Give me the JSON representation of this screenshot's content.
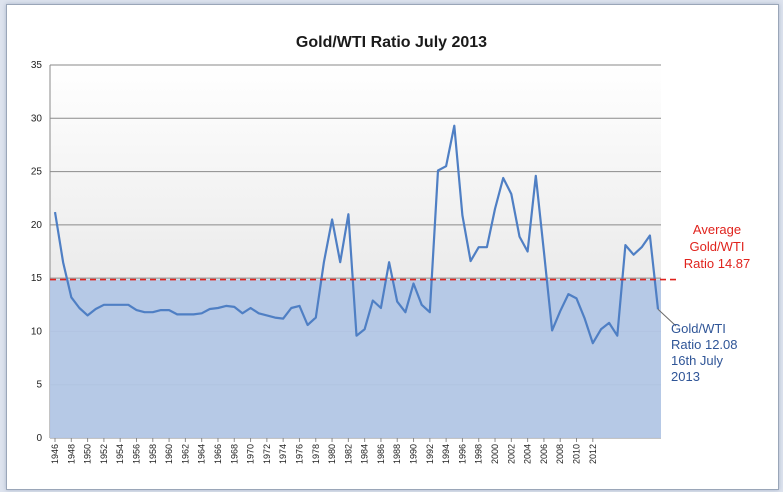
{
  "chart_data": {
    "type": "area",
    "title": "Gold/WTI Ratio July 2013",
    "ylim": [
      0,
      35
    ],
    "yticks": [
      0,
      5,
      10,
      15,
      20,
      25,
      30,
      35
    ],
    "xticks": [
      "1946",
      "1948",
      "1950",
      "1952",
      "1954",
      "1956",
      "1958",
      "1960",
      "1962",
      "1964",
      "1966",
      "1968",
      "1970",
      "1972",
      "1974",
      "1976",
      "1978",
      "1980",
      "1982",
      "1984",
      "1986",
      "1988",
      "1990",
      "1992",
      "1994",
      "1996",
      "1998",
      "2000",
      "2002",
      "2004",
      "2006",
      "2008",
      "2010",
      "2012"
    ],
    "grid": true,
    "series": [
      {
        "values": [
          21.2,
          16.5,
          13.2,
          12.2,
          11.5,
          12.1,
          12.5,
          12.5,
          12.5,
          12.5,
          12.0,
          11.8,
          11.8,
          12.0,
          12.0,
          11.6,
          11.6,
          11.6,
          11.7,
          12.1,
          12.2,
          12.4,
          12.3,
          11.7,
          12.2,
          11.7,
          11.5,
          11.3,
          11.2,
          12.2,
          12.4,
          10.6,
          11.3,
          16.5,
          20.5,
          16.5,
          21.0,
          9.6,
          10.2,
          12.9,
          12.2,
          16.5,
          12.8,
          11.8,
          14.5,
          12.5,
          11.8,
          25.1,
          25.5,
          29.3,
          20.9,
          16.6,
          17.9,
          17.9,
          21.5,
          24.4,
          22.9,
          18.9,
          17.5,
          24.6,
          17.5,
          10.1,
          11.9,
          13.5,
          13.1,
          11.2,
          8.9,
          10.2,
          10.8,
          9.6,
          18.1,
          17.2,
          17.9,
          19.0,
          12.08
        ],
        "color": "#4f7fc4"
      }
    ],
    "reference_line": {
      "value": 14.87,
      "color": "#e0231d"
    },
    "annotations": {
      "average": [
        "Average",
        "Gold/WTI",
        "Ratio 14.87"
      ],
      "current": [
        "Gold/WTI",
        "Ratio 12.08",
        "16th July",
        "2013"
      ]
    },
    "area_fill_color": "#b3c7e6"
  }
}
